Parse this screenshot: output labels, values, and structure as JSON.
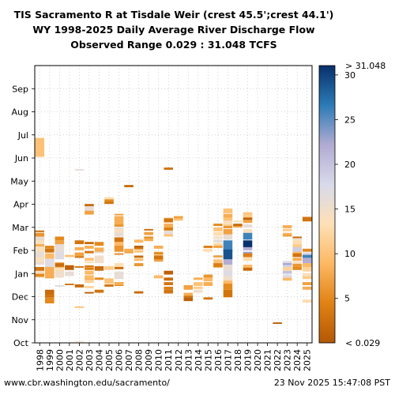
{
  "chart_data": {
    "type": "heatmap",
    "title": [
      "TIS Sacramento R at Tisdale Weir (crest 45.5';crest 44.1')",
      "WY 1998-2025 Daily Average River Discharge Flow",
      "Observed Range 0.029 : 31.048 TCFS"
    ],
    "xlabel": "",
    "ylabel": "",
    "x_categories": [
      "1998",
      "1999",
      "2000",
      "2001",
      "2002",
      "2003",
      "2004",
      "2005",
      "2006",
      "2007",
      "2008",
      "2009",
      "2010",
      "2011",
      "2012",
      "2013",
      "2014",
      "2015",
      "2016",
      "2017",
      "2018",
      "2019",
      "2020",
      "2021",
      "2022",
      "2023",
      "2024",
      "2025"
    ],
    "y_ticks": [
      "Oct",
      "Nov",
      "Dec",
      "Jan",
      "Feb",
      "Mar",
      "Apr",
      "May",
      "Jun",
      "Jul",
      "Aug",
      "Sep"
    ],
    "grid": true,
    "colorbar": {
      "min": 0.029,
      "max": 31.048,
      "ticks": [
        5,
        10,
        15,
        20,
        25,
        30
      ],
      "under_label": "< 0.029",
      "over_label": "> 31.048",
      "colormap": [
        "#b35806",
        "#e08214",
        "#fdb863",
        "#fee0b6",
        "#d8daeb",
        "#b2abd2",
        "#2c7bb6",
        "#08306b"
      ]
    },
    "units": "TCFS",
    "series": [
      {
        "year": "1998",
        "segments": [
          [
            245,
            270,
            10
          ],
          [
            129,
            145,
            6
          ],
          [
            136,
            140,
            16
          ],
          [
            86,
            100,
            14
          ],
          [
            95,
            100,
            3
          ],
          [
            146,
            148,
            2
          ],
          [
            105,
            108,
            4
          ],
          [
            105,
            114,
            9
          ],
          [
            103,
            116,
            16
          ],
          [
            106,
            136,
            14
          ],
          [
            113,
            120,
            16
          ],
          [
            87,
            91,
            5
          ],
          [
            127,
            130,
            8
          ]
        ]
      },
      {
        "year": "1999",
        "segments": [
          [
            106,
            108,
            5
          ],
          [
            85,
            88,
            7
          ],
          [
            99,
            110,
            12
          ],
          [
            119,
            124,
            3
          ],
          [
            110,
            118,
            9
          ],
          [
            124,
            128,
            5
          ],
          [
            52,
            60,
            5
          ],
          [
            60,
            70,
            2
          ],
          [
            61,
            64,
            3
          ],
          [
            86,
            100,
            8
          ],
          [
            100,
            111,
            17
          ]
        ]
      },
      {
        "year": "2000",
        "segments": [
          [
            110,
            125,
            17
          ],
          [
            126,
            135,
            7
          ],
          [
            102,
            106,
            13
          ],
          [
            136,
            138,
            2
          ],
          [
            135,
            140,
            5
          ],
          [
            120,
            130,
            16
          ],
          [
            104,
            106,
            7
          ],
          [
            103,
            105,
            3
          ],
          [
            100,
            104,
            2
          ],
          [
            95,
            97,
            12
          ],
          [
            98,
            100,
            10
          ],
          [
            74,
            76,
            17
          ],
          [
            86,
            95,
            15
          ]
        ]
      },
      {
        "year": "2001",
        "segments": [
          [
            100,
            103,
            12
          ],
          [
            113,
            116,
            10
          ],
          [
            96,
            102,
            1
          ],
          [
            88,
            94,
            16
          ],
          [
            76,
            78,
            3
          ]
        ]
      },
      {
        "year": "2002",
        "segments": [
          [
            99,
            101,
            3
          ],
          [
            73,
            77,
            2
          ],
          [
            114,
            119,
            7
          ],
          [
            122,
            126,
            8
          ],
          [
            46,
            48,
            10
          ],
          [
            112,
            114,
            3
          ],
          [
            130,
            135,
            3
          ],
          [
            1,
            2,
            14
          ],
          [
            227,
            229,
            16
          ]
        ]
      },
      {
        "year": "2003",
        "segments": [
          [
            98,
            100,
            7
          ],
          [
            100,
            102,
            3
          ],
          [
            173,
            182,
            16
          ],
          [
            169,
            174,
            7
          ],
          [
            180,
            183,
            2
          ],
          [
            82,
            85,
            8
          ],
          [
            79,
            83,
            12
          ],
          [
            72,
            75,
            12
          ],
          [
            65,
            67,
            1
          ],
          [
            96,
            99,
            4
          ],
          [
            90,
            95,
            9
          ],
          [
            84,
            89,
            9
          ],
          [
            124,
            128,
            8
          ],
          [
            108,
            112,
            10
          ],
          [
            118,
            121,
            3
          ],
          [
            130,
            133,
            2
          ],
          [
            105,
            107,
            13
          ]
        ]
      },
      {
        "year": "2004",
        "segments": [
          [
            128,
            133,
            5
          ],
          [
            120,
            126,
            12
          ],
          [
            118,
            121,
            16
          ],
          [
            120,
            125,
            8
          ],
          [
            95,
            101,
            2
          ],
          [
            105,
            115,
            15
          ],
          [
            66,
            70,
            3
          ],
          [
            83,
            86,
            5
          ]
        ]
      },
      {
        "year": "2005",
        "segments": [
          [
            188,
            192,
            13
          ],
          [
            184,
            189,
            5
          ],
          [
            183,
            186,
            3
          ],
          [
            78,
            85,
            10
          ],
          [
            96,
            101,
            11
          ],
          [
            74,
            77,
            3
          ]
        ]
      },
      {
        "year": "2006",
        "segments": [
          [
            84,
            94,
            16
          ],
          [
            140,
            152,
            16
          ],
          [
            145,
            150,
            14
          ],
          [
            126,
            133,
            9
          ],
          [
            120,
            128,
            6
          ],
          [
            155,
            167,
            8
          ],
          [
            153,
            156,
            6
          ],
          [
            133,
            139,
            3
          ],
          [
            75,
            80,
            4
          ],
          [
            97,
            100,
            2
          ],
          [
            116,
            118,
            5
          ],
          [
            76,
            80,
            8
          ],
          [
            100,
            105,
            13
          ],
          [
            168,
            170,
            7
          ]
        ]
      },
      {
        "year": "2007",
        "segments": [
          [
            205,
            208,
            2
          ],
          [
            118,
            122,
            7
          ],
          [
            120,
            124,
            8
          ]
        ]
      },
      {
        "year": "2008",
        "segments": [
          [
            132,
            136,
            9
          ],
          [
            123,
            125,
            4
          ],
          [
            112,
            115,
            2
          ],
          [
            119,
            122,
            10
          ],
          [
            108,
            111,
            9
          ],
          [
            125,
            128,
            1
          ],
          [
            101,
            105,
            6
          ],
          [
            65,
            68,
            2
          ]
        ]
      },
      {
        "year": "2009",
        "segments": [
          [
            142,
            146,
            7
          ],
          [
            137,
            140,
            5
          ],
          [
            134,
            138,
            8
          ],
          [
            148,
            150,
            2
          ]
        ]
      },
      {
        "year": "2010",
        "segments": [
          [
            115,
            120,
            8
          ],
          [
            116,
            119,
            4
          ],
          [
            107,
            112,
            7
          ],
          [
            114,
            117,
            10
          ],
          [
            124,
            128,
            8
          ],
          [
            85,
            89,
            9
          ],
          [
            110,
            115,
            3
          ]
        ]
      },
      {
        "year": "2011",
        "segments": [
          [
            142,
            148,
            16
          ],
          [
            158,
            165,
            11
          ],
          [
            159,
            164,
            3
          ],
          [
            152,
            157,
            8
          ],
          [
            148,
            152,
            4
          ],
          [
            140,
            143,
            10
          ],
          [
            228,
            231,
            3
          ],
          [
            82,
            86,
            2
          ],
          [
            76,
            80,
            3
          ],
          [
            90,
            95,
            1
          ],
          [
            70,
            74,
            4
          ],
          [
            65,
            70,
            3
          ]
        ]
      },
      {
        "year": "2012",
        "segments": [
          [
            161,
            165,
            10
          ],
          [
            164,
            167,
            7
          ]
        ]
      },
      {
        "year": "2013",
        "segments": [
          [
            60,
            64,
            3
          ],
          [
            55,
            60,
            1
          ],
          [
            70,
            76,
            7
          ],
          [
            62,
            66,
            8
          ]
        ]
      },
      {
        "year": "2014",
        "segments": [
          [
            66,
            70,
            15
          ],
          [
            71,
            74,
            11
          ],
          [
            75,
            80,
            10
          ],
          [
            83,
            86,
            8
          ]
        ]
      },
      {
        "year": "2015",
        "segments": [
          [
            125,
            128,
            4
          ],
          [
            75,
            80,
            8
          ],
          [
            81,
            86,
            9
          ],
          [
            86,
            90,
            6
          ],
          [
            57,
            60,
            3
          ],
          [
            120,
            124,
            13
          ]
        ]
      },
      {
        "year": "2016",
        "segments": [
          [
            147,
            152,
            10
          ],
          [
            141,
            146,
            13
          ],
          [
            137,
            140,
            15
          ],
          [
            132,
            136,
            16
          ],
          [
            128,
            131,
            12
          ],
          [
            105,
            110,
            10
          ],
          [
            99,
            103,
            8
          ],
          [
            113,
            115,
            3
          ],
          [
            112,
            114,
            9
          ],
          [
            100,
            105,
            4
          ],
          [
            154,
            157,
            5
          ],
          [
            125,
            128,
            7
          ]
        ]
      },
      {
        "year": "2017",
        "segments": [
          [
            120,
            135,
            26
          ],
          [
            110,
            123,
            29
          ],
          [
            103,
            110,
            22
          ],
          [
            95,
            103,
            16
          ],
          [
            88,
            95,
            17
          ],
          [
            80,
            88,
            15
          ],
          [
            60,
            70,
            3
          ],
          [
            70,
            78,
            5
          ],
          [
            78,
            82,
            9
          ],
          [
            136,
            145,
            16
          ],
          [
            143,
            150,
            7
          ],
          [
            151,
            154,
            6
          ],
          [
            154,
            156,
            11
          ],
          [
            156,
            162,
            14
          ],
          [
            161,
            165,
            10
          ],
          [
            165,
            170,
            8
          ],
          [
            171,
            173,
            4
          ],
          [
            171,
            177,
            10
          ]
        ]
      },
      {
        "year": "2018",
        "segments": [
          [
            152,
            155,
            7
          ],
          [
            154,
            157,
            2
          ],
          [
            159,
            161,
            13
          ]
        ]
      },
      {
        "year": "2019",
        "segments": [
          [
            136,
            145,
            26
          ],
          [
            126,
            135,
            31
          ],
          [
            145,
            150,
            14
          ],
          [
            152,
            156,
            16
          ],
          [
            158,
            162,
            7
          ],
          [
            163,
            166,
            10
          ],
          [
            115,
            120,
            23
          ],
          [
            122,
            126,
            22
          ],
          [
            108,
            113,
            13
          ],
          [
            98,
            103,
            9
          ],
          [
            95,
            99,
            2
          ],
          [
            113,
            118,
            4
          ],
          [
            162,
            165,
            1
          ],
          [
            168,
            172,
            10
          ],
          [
            166,
            170,
            11
          ]
        ]
      },
      {
        "year": "2022",
        "segments": [
          [
            25,
            27,
            1
          ]
        ]
      },
      {
        "year": "2023",
        "segments": [
          [
            151,
            155,
            8
          ],
          [
            147,
            150,
            11
          ],
          [
            142,
            145,
            9
          ],
          [
            140,
            143,
            7
          ],
          [
            82,
            86,
            9
          ],
          [
            86,
            90,
            17
          ],
          [
            91,
            95,
            20
          ],
          [
            95,
            100,
            12
          ],
          [
            100,
            103,
            19
          ],
          [
            103,
            105,
            23
          ],
          [
            105,
            108,
            17
          ]
        ]
      },
      {
        "year": "2024",
        "segments": [
          [
            108,
            112,
            8
          ],
          [
            116,
            122,
            9
          ],
          [
            125,
            130,
            11
          ],
          [
            130,
            135,
            13
          ],
          [
            135,
            140,
            15
          ],
          [
            138,
            140,
            2
          ],
          [
            120,
            126,
            19
          ],
          [
            103,
            107,
            14
          ],
          [
            100,
            104,
            6
          ],
          [
            96,
            100,
            5
          ],
          [
            113,
            118,
            3
          ]
        ]
      },
      {
        "year": "2025",
        "segments": [
          [
            53,
            57,
            13
          ],
          [
            70,
            74,
            8
          ],
          [
            76,
            80,
            7
          ],
          [
            84,
            88,
            11
          ],
          [
            88,
            92,
            14
          ],
          [
            94,
            100,
            12
          ],
          [
            100,
            105,
            9
          ],
          [
            105,
            112,
            22
          ],
          [
            112,
            116,
            26
          ],
          [
            116,
            119,
            18
          ],
          [
            120,
            124,
            5
          ],
          [
            160,
            166,
            3
          ]
        ]
      }
    ]
  },
  "footer": {
    "url": "www.cbr.washington.edu/sacramento/",
    "timestamp": "23 Nov 2025 15:47:08 PST"
  }
}
